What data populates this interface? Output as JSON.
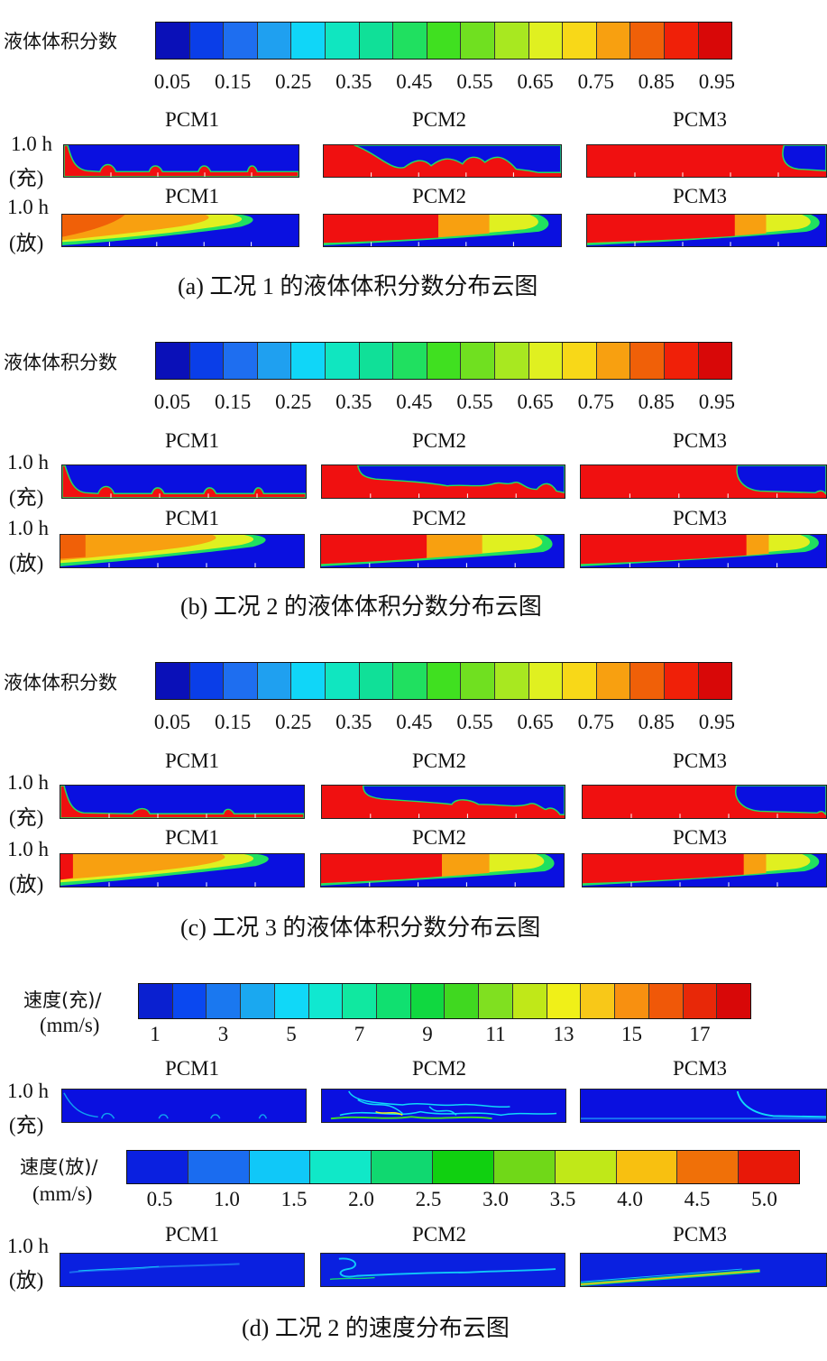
{
  "fraction_colorbar": {
    "label": "液体体积分数",
    "ticks": [
      "0.05",
      "0.15",
      "0.25",
      "0.35",
      "0.45",
      "0.55",
      "0.65",
      "0.75",
      "0.85",
      "0.95"
    ],
    "colors": [
      "#0a10b8",
      "#0a3ee8",
      "#1e6ef0",
      "#1fa0f0",
      "#10d6f8",
      "#10e6c0",
      "#10e098",
      "#20e060",
      "#40e020",
      "#70e020",
      "#a8e820",
      "#e0f020",
      "#f8d818",
      "#f8a010",
      "#f06008",
      "#f02008",
      "#d80808"
    ]
  },
  "speed_charge_colorbar": {
    "label_line1": "速度(充)/",
    "label_line2": "(mm/s)",
    "ticks": [
      "1",
      "3",
      "5",
      "7",
      "9",
      "11",
      "13",
      "15",
      "17"
    ],
    "colors": [
      "#0a20d0",
      "#0a48f0",
      "#1a78f0",
      "#1aa8f0",
      "#10d8f8",
      "#10e8d0",
      "#10e8a0",
      "#10e070",
      "#10d840",
      "#40d820",
      "#80e020",
      "#c0e818",
      "#f0f018",
      "#f8c818",
      "#f89010",
      "#f05808",
      "#e82808",
      "#d80808"
    ]
  },
  "speed_discharge_colorbar": {
    "label_line1": "速度(放)/",
    "label_line2": "(mm/s)",
    "ticks": [
      "0.5",
      "1.0",
      "1.5",
      "2.0",
      "2.5",
      "3.0",
      "3.5",
      "4.0",
      "4.5",
      "5.0"
    ],
    "colors": [
      "#0a20e0",
      "#1a6cf0",
      "#10c8f8",
      "#10e8c8",
      "#10d870",
      "#10d010",
      "#70d818",
      "#c0e818",
      "#f8c010",
      "#f07008",
      "#e81808"
    ]
  },
  "row_labels": {
    "charge_time": "1.0 h",
    "charge_mode": "(充)",
    "discharge_time": "1.0 h",
    "discharge_mode": "(放)"
  },
  "pcm_names": [
    "PCM1",
    "PCM2",
    "PCM3"
  ],
  "captions": {
    "a": "(a)  工况 1 的液体体积分数分布云图",
    "b": "(b)  工况 2 的液体体积分数分布云图",
    "c": "(c)  工况 3 的液体体积分数分布云图",
    "d": "(d)  工况 2 的速度分布云图"
  }
}
